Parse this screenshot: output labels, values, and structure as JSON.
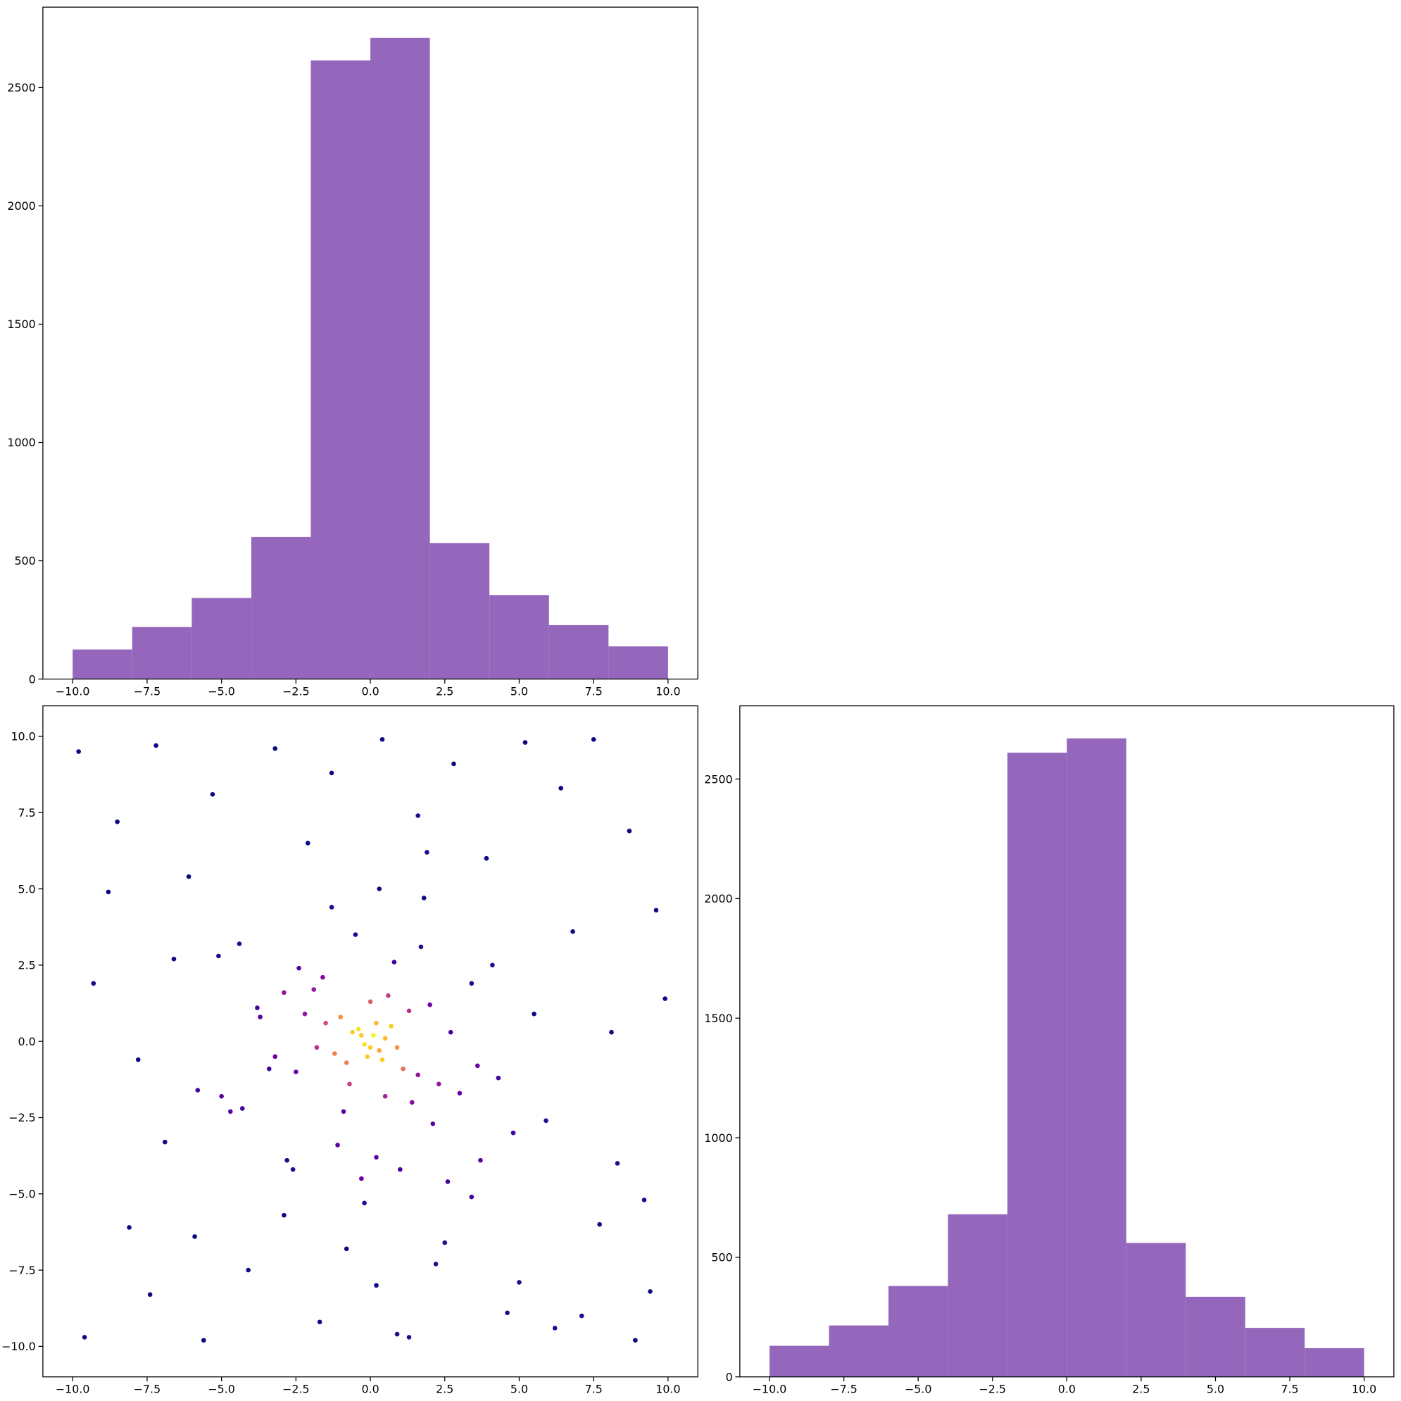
{
  "chart_data": [
    {
      "type": "histogram",
      "bins": [
        -10,
        -8,
        -6,
        -4,
        -2,
        0,
        2,
        4,
        6,
        8,
        10
      ],
      "counts": [
        125,
        220,
        343,
        600,
        2615,
        2710,
        575,
        355,
        228,
        138
      ],
      "color": "#9467bd",
      "xlim": [
        -11,
        11
      ],
      "ylim": [
        0,
        2840
      ],
      "xticks": [
        {
          "value": -10,
          "label": "−10.0"
        },
        {
          "value": -7.5,
          "label": "−7.5"
        },
        {
          "value": -5,
          "label": "−5.0"
        },
        {
          "value": -2.5,
          "label": "−2.5"
        },
        {
          "value": 0,
          "label": "0.0"
        },
        {
          "value": 2.5,
          "label": "2.5"
        },
        {
          "value": 5,
          "label": "5.0"
        },
        {
          "value": 7.5,
          "label": "7.5"
        },
        {
          "value": 10,
          "label": "10.0"
        }
      ],
      "yticks": [
        0,
        500,
        1000,
        1500,
        2000,
        2500
      ]
    },
    {
      "type": "scatter",
      "cmap": "plasma",
      "x": [
        -9.8,
        -8.5,
        -7.2,
        -6.1,
        -5.3,
        -4.4,
        -3.2,
        -2.1,
        -1.3,
        0.4,
        1.6,
        2.8,
        3.9,
        5.2,
        6.4,
        7.5,
        8.7,
        9.6,
        -9.3,
        -7.8,
        -6.6,
        -5.0,
        -3.7,
        -2.6,
        -0.8,
        0.9,
        2.2,
        3.4,
        4.6,
        5.9,
        7.1,
        8.3,
        9.4,
        -9.6,
        -8.1,
        -6.9,
        -5.6,
        -4.1,
        -2.9,
        -1.7,
        0.2,
        1.3,
        2.5,
        3.7,
        5.0,
        6.2,
        7.7,
        8.9,
        9.9,
        -8.8,
        -7.4,
        -5.9,
        -4.7,
        -3.4,
        -0.3,
        1.9,
        4.3,
        6.8,
        8.1,
        9.2,
        0.1,
        -0.2,
        0.3,
        -0.4,
        0.5,
        -0.1,
        0.2,
        -0.3,
        0.0,
        0.4,
        -0.6,
        0.7,
        -0.8,
        0.9,
        -1.0,
        1.1,
        -1.2,
        1.3,
        -1.5,
        1.6,
        -1.8,
        2.0,
        -2.2,
        2.3,
        -2.5,
        2.7,
        -2.9,
        3.0,
        -3.2,
        3.4,
        0.6,
        -0.7,
        1.4,
        -1.6,
        0.8,
        -0.9,
        2.1,
        -2.4,
        1.7,
        -1.1,
        3.6,
        -3.8,
        4.1,
        -4.3,
        0.2,
        -0.5,
        1.0,
        -1.3,
        2.6,
        -2.8,
        0.3,
        -0.2,
        1.8,
        -1.9,
        4.8,
        -5.1,
        5.5,
        -5.8,
        0.0,
        0.5
      ],
      "y": [
        9.5,
        7.2,
        9.7,
        5.4,
        8.1,
        3.2,
        9.6,
        6.5,
        8.8,
        9.9,
        7.4,
        9.1,
        6.0,
        9.8,
        8.3,
        9.9,
        6.9,
        4.3,
        1.9,
        -0.6,
        2.7,
        -1.8,
        0.8,
        -4.2,
        -6.8,
        -9.6,
        -7.3,
        -5.1,
        -8.9,
        -2.6,
        -9.0,
        -4.0,
        -8.2,
        -9.7,
        -6.1,
        -3.3,
        -9.8,
        -7.5,
        -5.7,
        -9.2,
        -8.0,
        -9.7,
        -6.6,
        -3.9,
        -7.9,
        -9.4,
        -6.0,
        -9.8,
        1.4,
        4.9,
        -8.3,
        -6.4,
        -2.3,
        -0.9,
        -4.5,
        6.2,
        -1.2,
        3.6,
        0.3,
        -5.2,
        0.2,
        -0.1,
        -0.3,
        0.4,
        0.1,
        -0.5,
        0.6,
        0.2,
        -0.2,
        -0.6,
        0.3,
        0.5,
        -0.7,
        -0.2,
        0.8,
        -0.9,
        -0.4,
        1.0,
        0.6,
        -1.1,
        -0.2,
        1.2,
        0.9,
        -1.4,
        -1.0,
        0.3,
        1.6,
        -1.7,
        -0.5,
        1.9,
        1.5,
        -1.4,
        -2.0,
        2.1,
        2.6,
        -2.3,
        -2.7,
        2.4,
        3.1,
        -3.4,
        -0.8,
        1.1,
        2.5,
        -2.2,
        -3.8,
        3.5,
        -4.2,
        4.4,
        -4.6,
        -3.9,
        5.0,
        -5.3,
        4.7,
        1.7,
        -3.0,
        2.8,
        0.9,
        -1.6,
        1.3,
        -1.8
      ],
      "xlim": [
        -11,
        11
      ],
      "ylim": [
        -11,
        11
      ],
      "xticks": [
        {
          "value": -10,
          "label": "−10.0"
        },
        {
          "value": -7.5,
          "label": "−7.5"
        },
        {
          "value": -5,
          "label": "−5.0"
        },
        {
          "value": -2.5,
          "label": "−2.5"
        },
        {
          "value": 0,
          "label": "0.0"
        },
        {
          "value": 2.5,
          "label": "2.5"
        },
        {
          "value": 5,
          "label": "5.0"
        },
        {
          "value": 7.5,
          "label": "7.5"
        },
        {
          "value": 10,
          "label": "10.0"
        }
      ],
      "yticks": [
        {
          "value": -10,
          "label": "−10.0"
        },
        {
          "value": -7.5,
          "label": "−7.5"
        },
        {
          "value": -5,
          "label": "−5.0"
        },
        {
          "value": -2.5,
          "label": "−2.5"
        },
        {
          "value": 0,
          "label": "0.0"
        },
        {
          "value": 2.5,
          "label": "2.5"
        },
        {
          "value": 5,
          "label": "5.0"
        },
        {
          "value": 7.5,
          "label": "7.5"
        },
        {
          "value": 10,
          "label": "10.0"
        }
      ]
    },
    {
      "type": "histogram",
      "bins": [
        -10,
        -8,
        -6,
        -4,
        -2,
        0,
        2,
        4,
        6,
        8,
        10
      ],
      "counts": [
        130,
        215,
        380,
        680,
        2610,
        2670,
        560,
        335,
        205,
        120
      ],
      "color": "#9467bd",
      "xlim": [
        -11,
        11
      ],
      "ylim": [
        0,
        2806
      ],
      "xticks": [
        {
          "value": -10,
          "label": "−10.0"
        },
        {
          "value": -7.5,
          "label": "−7.5"
        },
        {
          "value": -5,
          "label": "−5.0"
        },
        {
          "value": -2.5,
          "label": "−2.5"
        },
        {
          "value": 0,
          "label": "0.0"
        },
        {
          "value": 2.5,
          "label": "2.5"
        },
        {
          "value": 5,
          "label": "5.0"
        },
        {
          "value": 7.5,
          "label": "7.5"
        },
        {
          "value": 10,
          "label": "10.0"
        }
      ],
      "yticks": [
        0,
        500,
        1000,
        1500,
        2000,
        2500
      ]
    }
  ]
}
